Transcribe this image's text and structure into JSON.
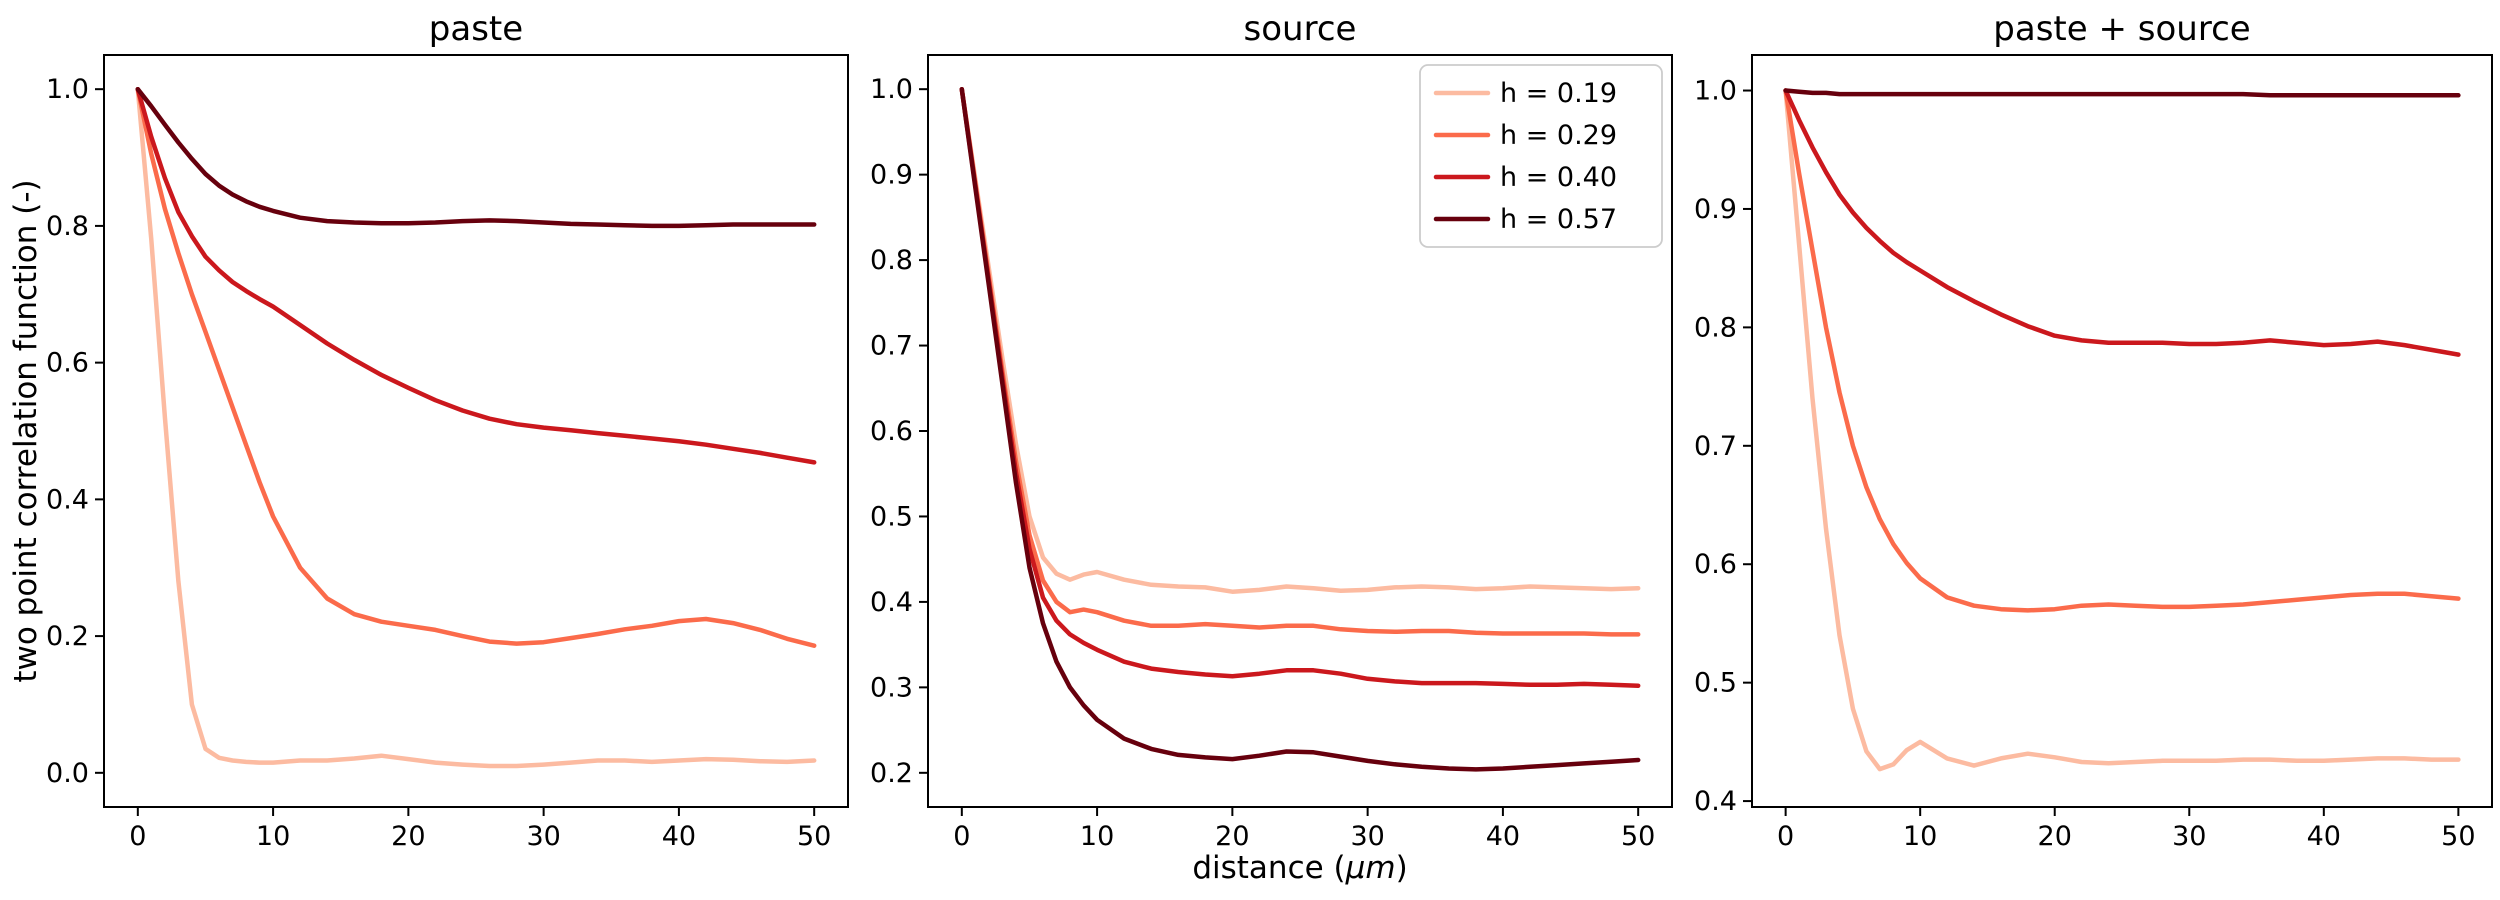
{
  "figure": {
    "ylabel": "two point correlation function (-)",
    "xlabel_prefix": "distance (",
    "xlabel_unit": "μm",
    "xlabel_suffix": ")",
    "background": "#ffffff",
    "axis_color": "#000000"
  },
  "chart_data": [
    {
      "type": "line",
      "title": "paste",
      "xlabel": "",
      "ylabel": "two point correlation function (-)",
      "xlim": [
        -2.5,
        52.5
      ],
      "ylim": [
        -0.05,
        1.05
      ],
      "xticks": [
        0,
        10,
        20,
        30,
        40,
        50
      ],
      "xtick_labels": [
        "0",
        "10",
        "20",
        "30",
        "40",
        "50"
      ],
      "yticks": [
        0.0,
        0.2,
        0.4,
        0.6,
        0.8,
        1.0
      ],
      "ytick_labels": [
        "0.0",
        "0.2",
        "0.4",
        "0.6",
        "0.8",
        "1.0"
      ],
      "grid": false,
      "legend_visible": false,
      "x": [
        0,
        1,
        2,
        3,
        4,
        5,
        6,
        7,
        8,
        9,
        10,
        12,
        14,
        16,
        18,
        20,
        22,
        24,
        26,
        28,
        30,
        32,
        34,
        36,
        38,
        40,
        42,
        44,
        46,
        48,
        50
      ],
      "series": [
        {
          "name": "h = 0.19",
          "color": "#fcbba1",
          "values": [
            1.0,
            0.78,
            0.52,
            0.28,
            0.1,
            0.035,
            0.022,
            0.018,
            0.016,
            0.015,
            0.015,
            0.018,
            0.018,
            0.021,
            0.025,
            0.02,
            0.015,
            0.012,
            0.01,
            0.01,
            0.012,
            0.015,
            0.018,
            0.018,
            0.016,
            0.018,
            0.02,
            0.019,
            0.017,
            0.016,
            0.018
          ]
        },
        {
          "name": "h = 0.29",
          "color": "#fb6b4b",
          "values": [
            1.0,
            0.905,
            0.825,
            0.76,
            0.7,
            0.645,
            0.59,
            0.535,
            0.48,
            0.425,
            0.375,
            0.3,
            0.255,
            0.232,
            0.221,
            0.215,
            0.209,
            0.2,
            0.192,
            0.189,
            0.191,
            0.197,
            0.203,
            0.21,
            0.215,
            0.222,
            0.225,
            0.219,
            0.209,
            0.196,
            0.186
          ]
        },
        {
          "name": "h = 0.40",
          "color": "#cb181d",
          "values": [
            1.0,
            0.93,
            0.87,
            0.82,
            0.785,
            0.755,
            0.735,
            0.718,
            0.705,
            0.693,
            0.682,
            0.655,
            0.628,
            0.604,
            0.582,
            0.563,
            0.545,
            0.53,
            0.518,
            0.51,
            0.505,
            0.501,
            0.497,
            0.493,
            0.489,
            0.485,
            0.48,
            0.474,
            0.468,
            0.461,
            0.454
          ]
        },
        {
          "name": "h = 0.57",
          "color": "#67000d",
          "values": [
            1.0,
            0.975,
            0.948,
            0.922,
            0.898,
            0.876,
            0.859,
            0.846,
            0.836,
            0.828,
            0.822,
            0.812,
            0.807,
            0.805,
            0.804,
            0.804,
            0.805,
            0.807,
            0.808,
            0.807,
            0.805,
            0.803,
            0.802,
            0.801,
            0.8,
            0.8,
            0.801,
            0.802,
            0.802,
            0.802,
            0.802
          ]
        }
      ]
    },
    {
      "type": "line",
      "title": "source",
      "xlabel": "distance (μm)",
      "ylabel": "",
      "xlim": [
        -2.5,
        52.5
      ],
      "ylim": [
        0.16,
        1.04
      ],
      "xticks": [
        0,
        10,
        20,
        30,
        40,
        50
      ],
      "xtick_labels": [
        "0",
        "10",
        "20",
        "30",
        "40",
        "50"
      ],
      "yticks": [
        0.2,
        0.3,
        0.4,
        0.5,
        0.6,
        0.7,
        0.8,
        0.9,
        1.0
      ],
      "ytick_labels": [
        "0.2",
        "0.3",
        "0.4",
        "0.5",
        "0.6",
        "0.7",
        "0.8",
        "0.9",
        "1.0"
      ],
      "grid": false,
      "legend_visible": true,
      "legend_position": "upper right",
      "x": [
        0,
        1,
        2,
        3,
        4,
        5,
        6,
        7,
        8,
        9,
        10,
        12,
        14,
        16,
        18,
        20,
        22,
        24,
        26,
        28,
        30,
        32,
        34,
        36,
        38,
        40,
        42,
        44,
        46,
        48,
        50
      ],
      "series": [
        {
          "name": "h = 0.19",
          "color": "#fcbba1",
          "values": [
            1.0,
            0.895,
            0.79,
            0.685,
            0.585,
            0.5,
            0.452,
            0.433,
            0.426,
            0.432,
            0.435,
            0.426,
            0.42,
            0.418,
            0.417,
            0.412,
            0.414,
            0.418,
            0.416,
            0.413,
            0.414,
            0.417,
            0.418,
            0.417,
            0.415,
            0.416,
            0.418,
            0.417,
            0.416,
            0.415,
            0.416
          ]
        },
        {
          "name": "h = 0.29",
          "color": "#fb6b4b",
          "values": [
            1.0,
            0.89,
            0.78,
            0.67,
            0.565,
            0.478,
            0.425,
            0.4,
            0.388,
            0.391,
            0.388,
            0.378,
            0.372,
            0.372,
            0.374,
            0.372,
            0.37,
            0.372,
            0.372,
            0.368,
            0.366,
            0.365,
            0.366,
            0.366,
            0.364,
            0.363,
            0.363,
            0.363,
            0.363,
            0.362,
            0.362
          ]
        },
        {
          "name": "h = 0.40",
          "color": "#cb181d",
          "values": [
            1.0,
            0.888,
            0.775,
            0.662,
            0.552,
            0.462,
            0.405,
            0.378,
            0.362,
            0.352,
            0.344,
            0.33,
            0.322,
            0.318,
            0.315,
            0.313,
            0.316,
            0.32,
            0.32,
            0.316,
            0.31,
            0.307,
            0.305,
            0.305,
            0.305,
            0.304,
            0.303,
            0.303,
            0.304,
            0.303,
            0.302
          ]
        },
        {
          "name": "h = 0.57",
          "color": "#67000d",
          "values": [
            1.0,
            0.885,
            0.77,
            0.655,
            0.54,
            0.44,
            0.375,
            0.33,
            0.3,
            0.279,
            0.262,
            0.24,
            0.228,
            0.221,
            0.218,
            0.216,
            0.22,
            0.225,
            0.224,
            0.219,
            0.214,
            0.21,
            0.207,
            0.205,
            0.204,
            0.205,
            0.207,
            0.209,
            0.211,
            0.213,
            0.215
          ]
        }
      ]
    },
    {
      "type": "line",
      "title": "paste + source",
      "xlabel": "",
      "ylabel": "",
      "xlim": [
        -2.5,
        52.5
      ],
      "ylim": [
        0.395,
        1.03
      ],
      "xticks": [
        0,
        10,
        20,
        30,
        40,
        50
      ],
      "xtick_labels": [
        "0",
        "10",
        "20",
        "30",
        "40",
        "50"
      ],
      "yticks": [
        0.4,
        0.5,
        0.6,
        0.7,
        0.8,
        0.9,
        1.0
      ],
      "ytick_labels": [
        "0.4",
        "0.5",
        "0.6",
        "0.7",
        "0.8",
        "0.9",
        "1.0"
      ],
      "grid": false,
      "legend_visible": false,
      "x": [
        0,
        1,
        2,
        3,
        4,
        5,
        6,
        7,
        8,
        9,
        10,
        12,
        14,
        16,
        18,
        20,
        22,
        24,
        26,
        28,
        30,
        32,
        34,
        36,
        38,
        40,
        42,
        44,
        46,
        48,
        50
      ],
      "series": [
        {
          "name": "h = 0.19",
          "color": "#fcbba1",
          "values": [
            1.0,
            0.87,
            0.74,
            0.63,
            0.54,
            0.478,
            0.442,
            0.427,
            0.431,
            0.443,
            0.45,
            0.436,
            0.43,
            0.436,
            0.44,
            0.437,
            0.433,
            0.432,
            0.433,
            0.434,
            0.434,
            0.434,
            0.435,
            0.435,
            0.434,
            0.434,
            0.435,
            0.436,
            0.436,
            0.435,
            0.435
          ]
        },
        {
          "name": "h = 0.29",
          "color": "#fb6b4b",
          "values": [
            1.0,
            0.93,
            0.865,
            0.8,
            0.745,
            0.7,
            0.665,
            0.638,
            0.617,
            0.601,
            0.588,
            0.572,
            0.565,
            0.562,
            0.561,
            0.562,
            0.565,
            0.566,
            0.565,
            0.564,
            0.564,
            0.565,
            0.566,
            0.568,
            0.57,
            0.572,
            0.574,
            0.575,
            0.575,
            0.573,
            0.571
          ]
        },
        {
          "name": "h = 0.40",
          "color": "#cb181d",
          "values": [
            1.0,
            0.975,
            0.952,
            0.931,
            0.912,
            0.897,
            0.884,
            0.873,
            0.863,
            0.855,
            0.848,
            0.834,
            0.822,
            0.811,
            0.801,
            0.793,
            0.789,
            0.787,
            0.787,
            0.787,
            0.786,
            0.786,
            0.787,
            0.789,
            0.787,
            0.785,
            0.786,
            0.788,
            0.785,
            0.781,
            0.777
          ]
        },
        {
          "name": "h = 0.57",
          "color": "#67000d",
          "values": [
            1.0,
            0.999,
            0.998,
            0.998,
            0.997,
            0.997,
            0.997,
            0.997,
            0.997,
            0.997,
            0.997,
            0.997,
            0.997,
            0.997,
            0.997,
            0.997,
            0.997,
            0.997,
            0.997,
            0.997,
            0.997,
            0.997,
            0.997,
            0.996,
            0.996,
            0.996,
            0.996,
            0.996,
            0.996,
            0.996,
            0.996
          ]
        }
      ]
    }
  ]
}
